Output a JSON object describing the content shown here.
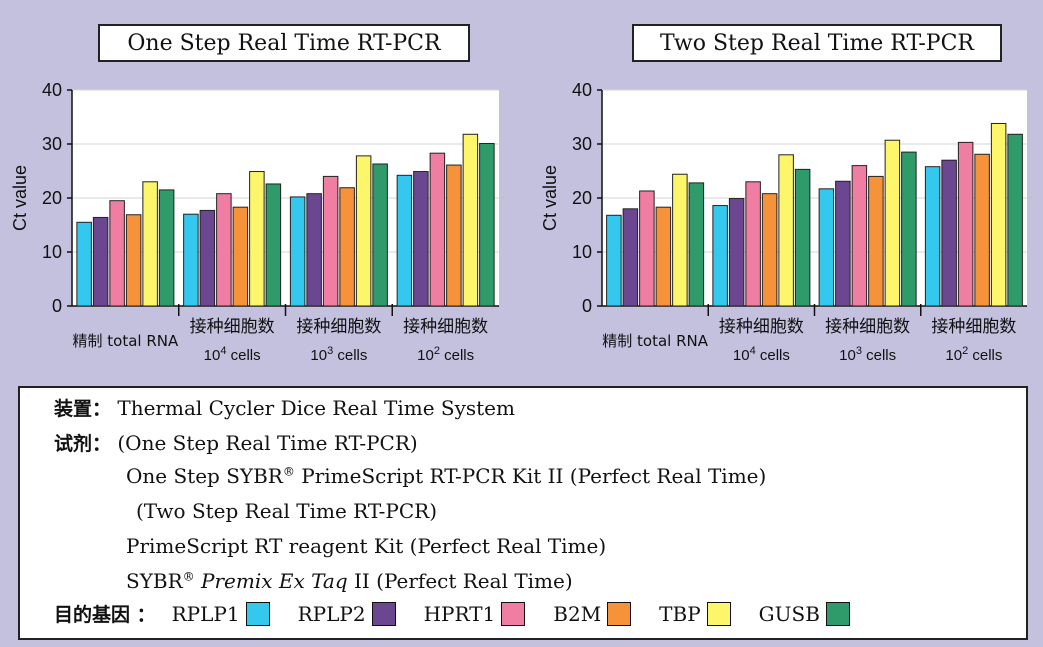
{
  "chart_data": [
    {
      "type": "bar",
      "title": "One Step Real Time RT-PCR",
      "ylabel": "Ct value",
      "ylim": [
        0,
        40
      ],
      "yticks": [
        0,
        10,
        20,
        30,
        40
      ],
      "categories": [
        {
          "line1": "精制 total RNA",
          "line2_base": "",
          "line2_exp": "",
          "line2_tail": ""
        },
        {
          "line1": "接种细胞数",
          "line2_base": "10",
          "line2_exp": "4",
          "line2_tail": " cells"
        },
        {
          "line1": "接种细胞数",
          "line2_base": "10",
          "line2_exp": "3",
          "line2_tail": " cells"
        },
        {
          "line1": "接种细胞数",
          "line2_base": "10",
          "line2_exp": "2",
          "line2_tail": " cells"
        }
      ],
      "series": [
        {
          "name": "RPLP1",
          "values": [
            15.5,
            17.0,
            20.2,
            24.2
          ]
        },
        {
          "name": "RPLP2",
          "values": [
            16.4,
            17.7,
            20.8,
            24.9
          ]
        },
        {
          "name": "HPRT1",
          "values": [
            19.5,
            20.8,
            24.0,
            28.3
          ]
        },
        {
          "name": "B2M",
          "values": [
            16.9,
            18.3,
            21.9,
            26.1
          ]
        },
        {
          "name": "TBP",
          "values": [
            23.0,
            24.9,
            27.8,
            31.8
          ]
        },
        {
          "name": "GUSB",
          "values": [
            21.5,
            22.6,
            26.3,
            30.1
          ]
        }
      ]
    },
    {
      "type": "bar",
      "title": "Two Step Real Time RT-PCR",
      "ylabel": "Ct value",
      "ylim": [
        0,
        40
      ],
      "yticks": [
        0,
        10,
        20,
        30,
        40
      ],
      "categories": [
        {
          "line1": "精制 total RNA",
          "line2_base": "",
          "line2_exp": "",
          "line2_tail": ""
        },
        {
          "line1": "接种细胞数",
          "line2_base": "10",
          "line2_exp": "4",
          "line2_tail": " cells"
        },
        {
          "line1": "接种细胞数",
          "line2_base": "10",
          "line2_exp": "3",
          "line2_tail": " cells"
        },
        {
          "line1": "接种细胞数",
          "line2_base": "10",
          "line2_exp": "2",
          "line2_tail": " cells"
        }
      ],
      "series": [
        {
          "name": "RPLP1",
          "values": [
            16.8,
            18.6,
            21.7,
            25.8
          ]
        },
        {
          "name": "RPLP2",
          "values": [
            18.0,
            19.9,
            23.1,
            27.0
          ]
        },
        {
          "name": "HPRT1",
          "values": [
            21.3,
            23.0,
            26.0,
            30.3
          ]
        },
        {
          "name": "B2M",
          "values": [
            18.3,
            20.8,
            24.0,
            28.1
          ]
        },
        {
          "name": "TBP",
          "values": [
            24.4,
            28.0,
            30.7,
            33.8
          ]
        },
        {
          "name": "GUSB",
          "values": [
            22.8,
            25.3,
            28.5,
            31.8
          ]
        }
      ]
    }
  ],
  "series_colors": [
    "#35c8ee",
    "#6b4791",
    "#f07ea3",
    "#f5923a",
    "#fdf66a",
    "#2f9a6a"
  ],
  "info": {
    "device_label": "装置：",
    "device_value": "Thermal Cycler Dice Real Time System",
    "reagent_label": "试剂：",
    "one_step_header": "(One Step Real Time RT-PCR)",
    "one_step_kit_a": "One Step SYBR",
    "one_step_kit_reg": "®",
    "one_step_kit_b": " PrimeScript RT-PCR Kit II  (Perfect Real Time)",
    "two_step_header": "(Two Step Real Time RT-PCR)",
    "two_step_kit1": "PrimeScript RT reagent Kit  (Perfect Real Time)",
    "two_step_kit2_a": "SYBR",
    "two_step_kit2_reg": "®",
    "two_step_kit2_italic": " Premix Ex Taq",
    "two_step_kit2_b": " II  (Perfect Real Time)",
    "genes_label": "目的基因 ："
  }
}
